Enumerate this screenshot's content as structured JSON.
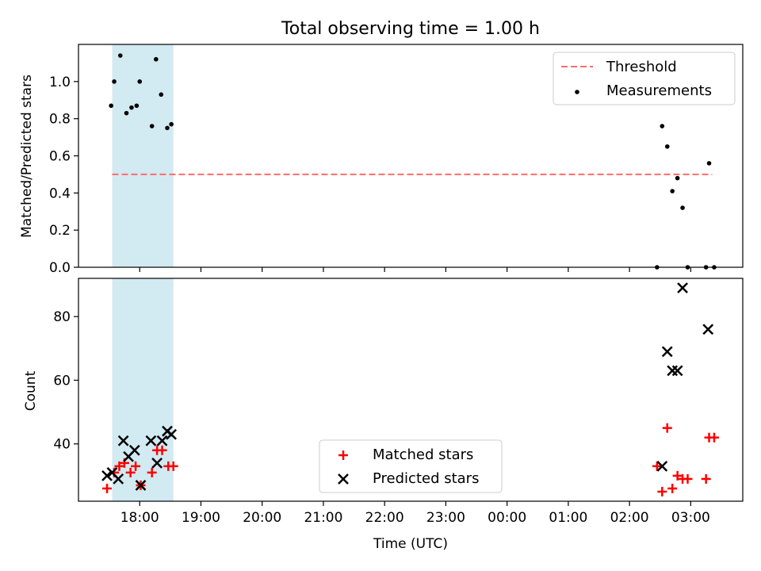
{
  "figure_title": "Total observing time = 1.00 h",
  "chart_data": [
    {
      "type": "scatter",
      "panel": "top",
      "ylabel": "Matched/Predicted stars",
      "ylim": [
        0,
        1.2
      ],
      "yticks": [
        "0.0",
        "0.2",
        "0.4",
        "0.6",
        "0.8",
        "1.0"
      ],
      "xticks": [
        "18:00",
        "19:00",
        "20:00",
        "21:00",
        "22:00",
        "23:00",
        "00:00",
        "01:00",
        "02:00",
        "03:00"
      ],
      "xrange_hours": [
        17.0,
        27.85
      ],
      "shaded_span_hours": [
        17.55,
        18.55
      ],
      "shade_color": "#add8e6",
      "legend": {
        "position": "top-right",
        "entries": [
          "Threshold",
          "Measurements"
        ]
      },
      "threshold": {
        "name": "Threshold",
        "y": 0.5,
        "x_start_hour": 17.55,
        "x_end_hour": 27.35,
        "color": "#ff6b6b"
      },
      "series": [
        {
          "name": "Measurements",
          "color": "#000000",
          "points": [
            {
              "x": "17:32",
              "y": 0.87
            },
            {
              "x": "17:35",
              "y": 1.0
            },
            {
              "x": "17:41",
              "y": 1.14
            },
            {
              "x": "17:47",
              "y": 0.83
            },
            {
              "x": "17:52",
              "y": 0.86
            },
            {
              "x": "17:57",
              "y": 0.87
            },
            {
              "x": "18:00",
              "y": 1.0
            },
            {
              "x": "18:12",
              "y": 0.76
            },
            {
              "x": "18:16",
              "y": 1.12
            },
            {
              "x": "18:21",
              "y": 0.93
            },
            {
              "x": "18:27",
              "y": 0.75
            },
            {
              "x": "18:31",
              "y": 0.77
            },
            {
              "x": "02:27",
              "y": 0.0
            },
            {
              "x": "02:32",
              "y": 0.76
            },
            {
              "x": "02:37",
              "y": 0.65
            },
            {
              "x": "02:42",
              "y": 0.41
            },
            {
              "x": "02:47",
              "y": 0.48
            },
            {
              "x": "02:52",
              "y": 0.32
            },
            {
              "x": "02:57",
              "y": 0.0
            },
            {
              "x": "03:15",
              "y": 0.0
            },
            {
              "x": "03:18",
              "y": 0.56
            },
            {
              "x": "03:23",
              "y": 0.0
            }
          ]
        }
      ]
    },
    {
      "type": "scatter",
      "panel": "bottom",
      "xlabel": "Time (UTC)",
      "ylabel": "Count",
      "ylim": [
        22,
        92
      ],
      "yticks": [
        "40",
        "60",
        "80"
      ],
      "xticks": [
        "18:00",
        "19:00",
        "20:00",
        "21:00",
        "22:00",
        "23:00",
        "00:00",
        "01:00",
        "02:00",
        "03:00"
      ],
      "xrange_hours": [
        17.0,
        27.85
      ],
      "shaded_span_hours": [
        17.55,
        18.55
      ],
      "shade_color": "#add8e6",
      "legend": {
        "position": "lower-center",
        "entries": [
          "Matched stars",
          "Predicted stars"
        ]
      },
      "series": [
        {
          "name": "Matched stars",
          "marker": "plus",
          "color": "#ff0000",
          "points": [
            {
              "x": "17:28",
              "y": 26
            },
            {
              "x": "17:35",
              "y": 31
            },
            {
              "x": "17:40",
              "y": 33
            },
            {
              "x": "17:45",
              "y": 34
            },
            {
              "x": "17:51",
              "y": 31
            },
            {
              "x": "17:56",
              "y": 33
            },
            {
              "x": "18:01",
              "y": 27
            },
            {
              "x": "18:12",
              "y": 31
            },
            {
              "x": "18:17",
              "y": 38
            },
            {
              "x": "18:22",
              "y": 38
            },
            {
              "x": "18:28",
              "y": 33
            },
            {
              "x": "18:33",
              "y": 33
            },
            {
              "x": "02:27",
              "y": 33
            },
            {
              "x": "02:32",
              "y": 25
            },
            {
              "x": "02:37",
              "y": 45
            },
            {
              "x": "02:42",
              "y": 26
            },
            {
              "x": "02:47",
              "y": 30
            },
            {
              "x": "02:52",
              "y": 29
            },
            {
              "x": "02:57",
              "y": 29
            },
            {
              "x": "03:15",
              "y": 29
            },
            {
              "x": "03:18",
              "y": 42
            },
            {
              "x": "03:23",
              "y": 42
            }
          ]
        },
        {
          "name": "Predicted stars",
          "marker": "x",
          "color": "#000000",
          "points": [
            {
              "x": "17:28",
              "y": 30
            },
            {
              "x": "17:33",
              "y": 31
            },
            {
              "x": "17:39",
              "y": 29
            },
            {
              "x": "17:44",
              "y": 41
            },
            {
              "x": "17:49",
              "y": 36
            },
            {
              "x": "17:55",
              "y": 38
            },
            {
              "x": "18:01",
              "y": 27
            },
            {
              "x": "18:11",
              "y": 41
            },
            {
              "x": "18:17",
              "y": 34
            },
            {
              "x": "18:22",
              "y": 41
            },
            {
              "x": "18:27",
              "y": 44
            },
            {
              "x": "18:31",
              "y": 43
            },
            {
              "x": "02:32",
              "y": 33
            },
            {
              "x": "02:37",
              "y": 69
            },
            {
              "x": "02:42",
              "y": 63
            },
            {
              "x": "02:47",
              "y": 63
            },
            {
              "x": "02:52",
              "y": 89
            },
            {
              "x": "03:17",
              "y": 76
            }
          ]
        }
      ]
    }
  ]
}
